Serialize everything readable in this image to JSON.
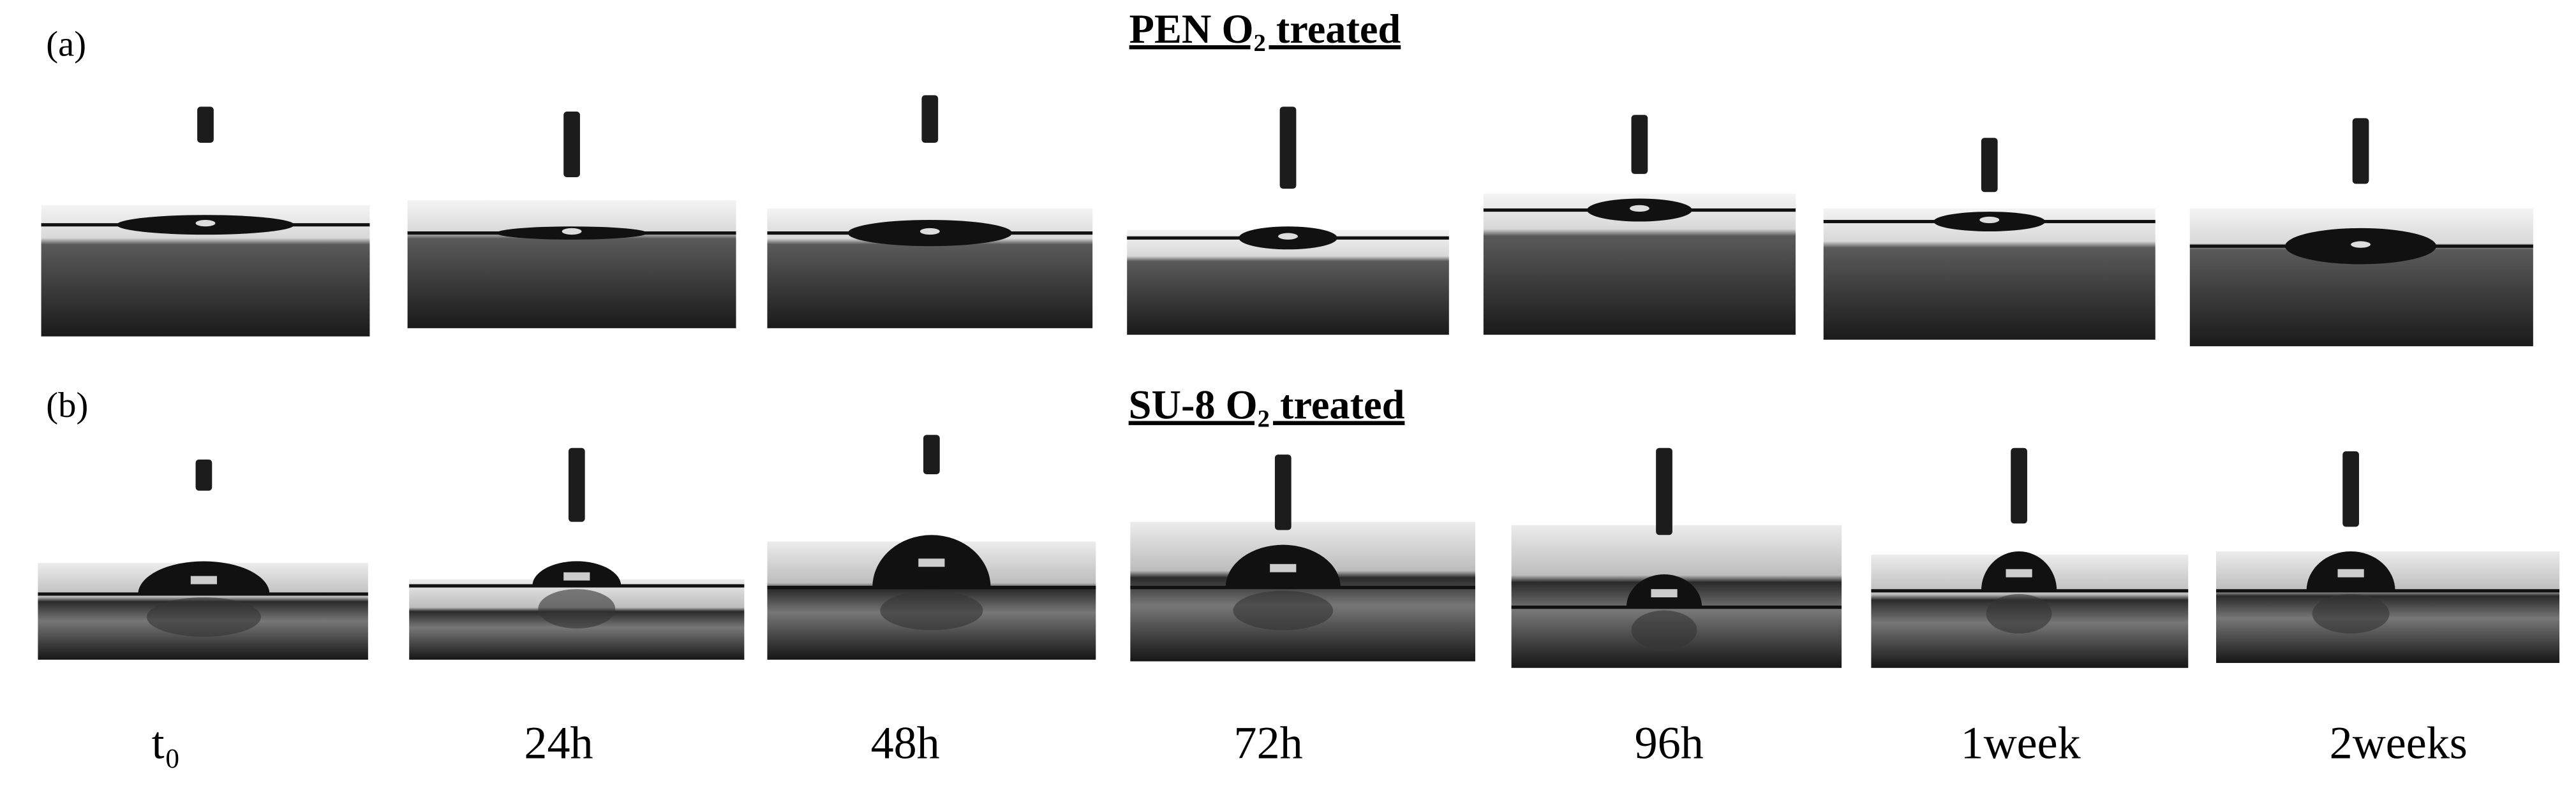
{
  "panels": [
    {
      "label": "(a)",
      "title": "PEN O₂ treated"
    },
    {
      "label": "(b)",
      "title": "SU-8 O₂ treated"
    }
  ],
  "time_labels": [
    "t₀",
    "24h",
    "48h",
    "72h",
    "96h",
    "1week",
    "2weeks"
  ]
}
